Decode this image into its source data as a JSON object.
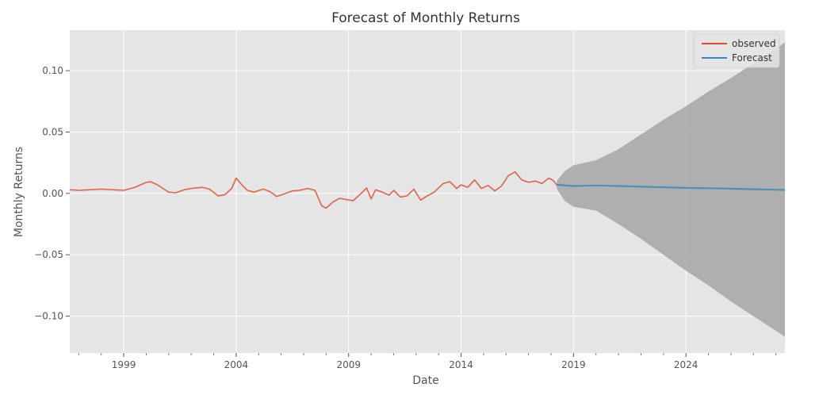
{
  "chart_data": {
    "type": "line",
    "title": "Forecast of Monthly Returns",
    "xlabel": "Date",
    "ylabel": "Monthly Returns",
    "xlim": [
      1996.6,
      2028.4
    ],
    "ylim": [
      -0.13,
      0.133
    ],
    "grid": true,
    "legend_position": "top-right",
    "x_ticks": [
      1999,
      2004,
      2009,
      2014,
      2019,
      2024
    ],
    "y_ticks": [
      -0.1,
      -0.05,
      0.0,
      0.05,
      0.1
    ],
    "y_tick_labels": [
      "−0.10",
      "−0.05",
      "0.00",
      "0.05",
      "0.10"
    ],
    "colors": {
      "background": "#e5e5e5",
      "grid": "#ffffff",
      "observed": "#e24a33",
      "forecast": "#348abd",
      "confidence": "#a9a9a9"
    },
    "series": [
      {
        "name": "observed",
        "x": [
          1996.6,
          1997.0,
          1997.5,
          1998.0,
          1998.5,
          1999.0,
          1999.5,
          2000.0,
          2000.2,
          2000.5,
          2001.0,
          2001.3,
          2001.7,
          2002.0,
          2002.5,
          2002.8,
          2003.2,
          2003.5,
          2003.8,
          2004.0,
          2004.2,
          2004.5,
          2004.8,
          2005.2,
          2005.5,
          2005.8,
          2006.2,
          2006.5,
          2006.8,
          2007.2,
          2007.5,
          2007.8,
          2008.0,
          2008.3,
          2008.6,
          2008.9,
          2009.2,
          2009.5,
          2009.8,
          2010.0,
          2010.2,
          2010.5,
          2010.8,
          2011.0,
          2011.3,
          2011.6,
          2011.9,
          2012.2,
          2012.5,
          2012.8,
          2013.2,
          2013.5,
          2013.8,
          2014.0,
          2014.3,
          2014.6,
          2014.9,
          2015.2,
          2015.5,
          2015.8,
          2016.1,
          2016.4,
          2016.7,
          2017.0,
          2017.3,
          2017.6,
          2017.9,
          2018.1,
          2018.25
        ],
        "values": [
          0.003,
          0.0025,
          0.003,
          0.0035,
          0.003,
          0.0025,
          0.005,
          0.009,
          0.0095,
          0.007,
          0.001,
          0.0005,
          0.003,
          0.004,
          0.005,
          0.0035,
          -0.002,
          -0.001,
          0.004,
          0.0125,
          0.008,
          0.0025,
          0.001,
          0.0035,
          0.0015,
          -0.0025,
          0.0,
          0.002,
          0.0025,
          0.004,
          0.0025,
          -0.01,
          -0.012,
          -0.007,
          -0.004,
          -0.005,
          -0.006,
          -0.001,
          0.0045,
          -0.0045,
          0.003,
          0.001,
          -0.0015,
          0.0025,
          -0.003,
          -0.002,
          0.0035,
          -0.0055,
          -0.002,
          0.001,
          0.008,
          0.0095,
          0.004,
          0.007,
          0.005,
          0.011,
          0.004,
          0.0065,
          0.002,
          0.006,
          0.0145,
          0.0175,
          0.011,
          0.009,
          0.01,
          0.008,
          0.0125,
          0.0105,
          0.007
        ]
      },
      {
        "name": "Forecast",
        "x": [
          2018.25,
          2019.0,
          2020.0,
          2021.0,
          2022.0,
          2023.0,
          2024.0,
          2025.0,
          2026.0,
          2027.0,
          2028.0,
          2028.4
        ],
        "values": [
          0.007,
          0.006,
          0.0065,
          0.006,
          0.0055,
          0.005,
          0.0045,
          0.0042,
          0.0038,
          0.0034,
          0.003,
          0.0028
        ]
      }
    ],
    "confidence_band": {
      "x": [
        2018.25,
        2018.6,
        2019.0,
        2020.0,
        2021.0,
        2022.0,
        2023.0,
        2024.0,
        2025.0,
        2026.0,
        2027.0,
        2028.0,
        2028.4
      ],
      "lower": [
        0.004,
        -0.006,
        -0.011,
        -0.014,
        -0.025,
        -0.037,
        -0.05,
        -0.063,
        -0.075,
        -0.088,
        -0.1,
        -0.112,
        -0.117
      ],
      "upper": [
        0.01,
        0.018,
        0.023,
        0.027,
        0.036,
        0.048,
        0.06,
        0.071,
        0.083,
        0.094,
        0.106,
        0.118,
        0.123
      ]
    }
  }
}
